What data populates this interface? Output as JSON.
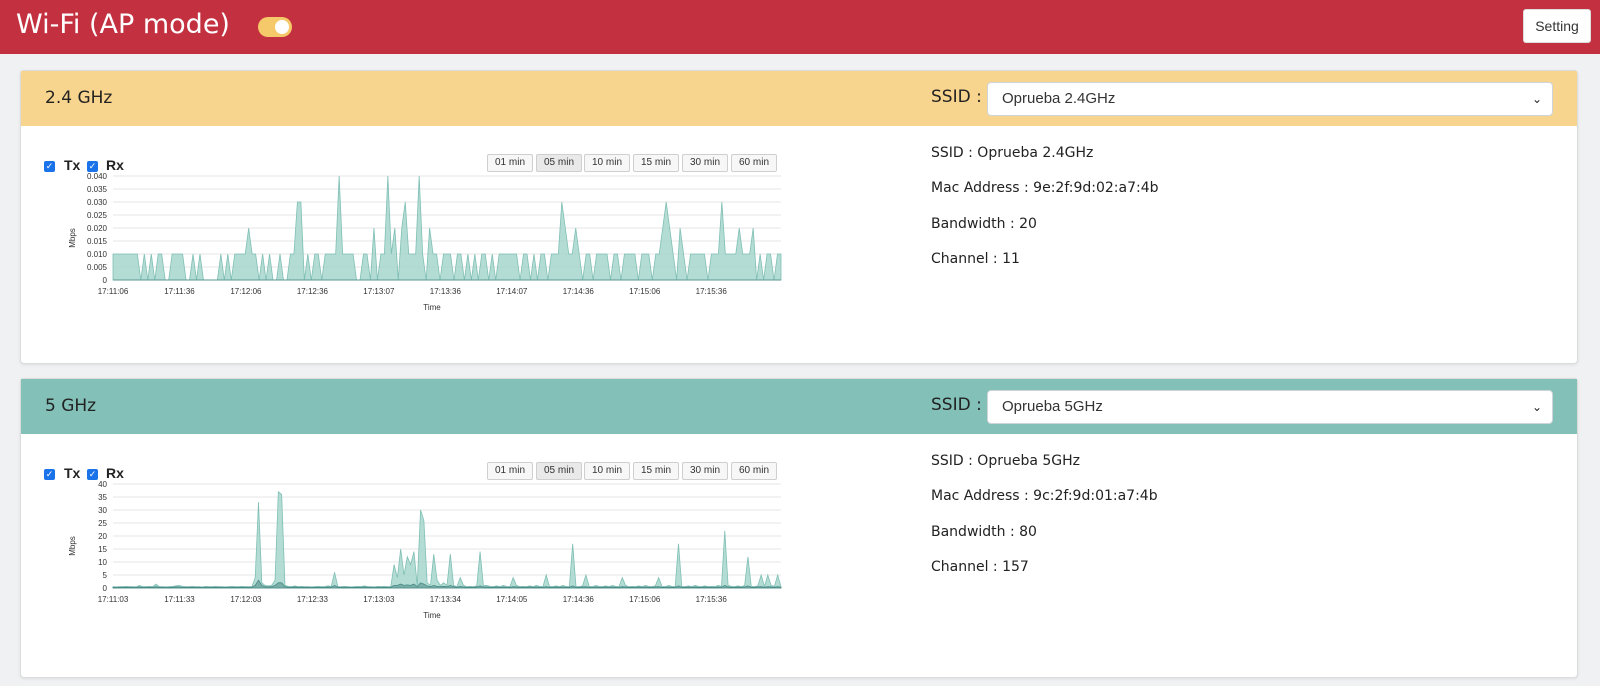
{
  "header": {
    "title": "Wi-Fi (AP mode)",
    "setting_label": "Setting",
    "toggle_on": true
  },
  "colors": {
    "header": "#c3303f",
    "band24": "#f8d58e",
    "band5": "#83c0b8",
    "fill": "#a6d6cc",
    "stroke": "#7fbfb4",
    "rx": "#4a8a85"
  },
  "bands": [
    {
      "title": "2.4 GHz",
      "ssid_label": "SSID :",
      "ssid_value": "Oprueba 2.4GHz",
      "legend": {
        "tx": "Tx",
        "rx": "Rx"
      },
      "ranges": [
        "01 min",
        "05 min",
        "10 min",
        "15 min",
        "30 min",
        "60 min"
      ],
      "active_range": "05 min",
      "info": {
        "ssid": "SSID : Oprueba 2.4GHz",
        "mac": "Mac Address : 9e:2f:9d:02:a7:4b",
        "bandwidth": "Bandwidth : 20",
        "channel": "Channel : 11"
      },
      "chart_data": {
        "type": "area",
        "title": "",
        "xlabel": "Time",
        "ylabel": "Mbps",
        "ylim": [
          0,
          0.04
        ],
        "yticks": [
          "0.040",
          "0.035",
          "0.030",
          "0.025",
          "0.020",
          "0.015",
          "0.010",
          "0.005",
          "0"
        ],
        "xticks": [
          "17:11:06",
          "17:11:36",
          "17:12:06",
          "17:12:36",
          "17:13:07",
          "17:13:36",
          "17:14:07",
          "17:14:36",
          "17:15:06",
          "17:15:36"
        ],
        "grid": true,
        "series": [
          {
            "values": [
              0.01,
              0.01,
              0.01,
              0.01,
              0.01,
              0.01,
              0.01,
              0.01,
              0,
              0.01,
              0,
              0.01,
              0,
              0.01,
              0.01,
              0,
              0,
              0.01,
              0.01,
              0.01,
              0.01,
              0,
              0,
              0.01,
              0,
              0.01,
              0,
              0,
              0,
              0,
              0,
              0.01,
              0,
              0.01,
              0,
              0.01,
              0.01,
              0.01,
              0.01,
              0.02,
              0.01,
              0.01,
              0,
              0.01,
              0,
              0.01,
              0,
              0,
              0.01,
              0,
              0,
              0.01,
              0.01,
              0.03,
              0.03,
              0,
              0.01,
              0,
              0.01,
              0.01,
              0,
              0.01,
              0.01,
              0.01,
              0.01,
              0.04,
              0.01,
              0.01,
              0.01,
              0.01,
              0,
              0,
              0.01,
              0.01,
              0,
              0.02,
              0,
              0.01,
              0.01,
              0.04,
              0.01,
              0.02,
              0,
              0.02,
              0.03,
              0.01,
              0.01,
              0.01,
              0.04,
              0.01,
              0,
              0.02,
              0.01,
              0.01,
              0,
              0.01,
              0.01,
              0.01,
              0,
              0.01,
              0.01,
              0,
              0.01,
              0,
              0.01,
              0,
              0.01,
              0.01,
              0,
              0.01,
              0,
              0.01,
              0.01,
              0.01,
              0.01,
              0.01,
              0.01,
              0,
              0.01,
              0.01,
              0,
              0.01,
              0,
              0.01,
              0.01,
              0,
              0.01,
              0.01,
              0.01,
              0.03,
              0.02,
              0.01,
              0.01,
              0.02,
              0.01,
              0,
              0.01,
              0.01,
              0,
              0.01,
              0.01,
              0.01,
              0.01,
              0,
              0.01,
              0.01,
              0,
              0.01,
              0.01,
              0.01,
              0.01,
              0,
              0.01,
              0.01,
              0.01,
              0,
              0.01,
              0.01,
              0.02,
              0.03,
              0.02,
              0.01,
              0,
              0.02,
              0.01,
              0,
              0.01,
              0.01,
              0.01,
              0.01,
              0.01,
              0,
              0.01,
              0.01,
              0.01,
              0.03,
              0.01,
              0.01,
              0.01,
              0.01,
              0.02,
              0.01,
              0.01,
              0.01,
              0.02,
              0,
              0.01,
              0,
              0.01,
              0.01,
              0,
              0.01,
              0.01
            ]
          },
          {
            "values": [
              0,
              0,
              0,
              0,
              0,
              0,
              0,
              0,
              0,
              0,
              0,
              0,
              0,
              0,
              0,
              0,
              0,
              0,
              0,
              0,
              0,
              0,
              0,
              0,
              0,
              0,
              0,
              0,
              0,
              0,
              0,
              0,
              0,
              0,
              0,
              0,
              0,
              0,
              0,
              0,
              0,
              0,
              0,
              0,
              0,
              0,
              0,
              0,
              0,
              0,
              0,
              0,
              0,
              0,
              0,
              0,
              0,
              0,
              0,
              0,
              0,
              0,
              0,
              0,
              0,
              0,
              0,
              0,
              0,
              0,
              0,
              0,
              0,
              0,
              0,
              0,
              0,
              0,
              0,
              0,
              0,
              0,
              0,
              0,
              0,
              0,
              0,
              0,
              0,
              0,
              0,
              0,
              0,
              0,
              0,
              0,
              0,
              0,
              0,
              0,
              0,
              0,
              0,
              0,
              0,
              0,
              0,
              0,
              0,
              0,
              0,
              0,
              0,
              0,
              0,
              0,
              0,
              0,
              0,
              0,
              0,
              0,
              0,
              0,
              0,
              0,
              0,
              0,
              0,
              0,
              0,
              0,
              0,
              0,
              0,
              0,
              0,
              0,
              0,
              0,
              0,
              0,
              0,
              0,
              0,
              0,
              0,
              0,
              0,
              0,
              0,
              0,
              0,
              0,
              0,
              0,
              0,
              0,
              0,
              0,
              0,
              0,
              0,
              0,
              0,
              0,
              0,
              0,
              0,
              0,
              0,
              0,
              0,
              0,
              0,
              0,
              0,
              0,
              0,
              0,
              0,
              0,
              0,
              0,
              0,
              0,
              0,
              0,
              0,
              0,
              0,
              0,
              0,
              0
            ]
          }
        ]
      }
    },
    {
      "title": "5 GHz",
      "ssid_label": "SSID :",
      "ssid_value": "Oprueba 5GHz",
      "legend": {
        "tx": "Tx",
        "rx": "Rx"
      },
      "ranges": [
        "01 min",
        "05 min",
        "10 min",
        "15 min",
        "30 min",
        "60 min"
      ],
      "active_range": "05 min",
      "info": {
        "ssid": "SSID : Oprueba 5GHz",
        "mac": "Mac Address : 9c:2f:9d:01:a7:4b",
        "bandwidth": "Bandwidth : 80",
        "channel": "Channel : 157"
      },
      "chart_data": {
        "type": "area",
        "title": "",
        "xlabel": "Time",
        "ylabel": "Mbps",
        "ylim": [
          0,
          40
        ],
        "yticks": [
          "40",
          "35",
          "30",
          "25",
          "20",
          "15",
          "10",
          "5",
          "0"
        ],
        "xticks": [
          "17:11:03",
          "17:11:33",
          "17:12:03",
          "17:12:33",
          "17:13:03",
          "17:13:34",
          "17:14:05",
          "17:14:36",
          "17:15:06",
          "17:15:36"
        ],
        "grid": true,
        "series": [
          {
            "values": [
              0.5,
              0.4,
              0.5,
              0.5,
              0.6,
              0.5,
              0.5,
              0.4,
              1,
              0.5,
              0.5,
              0.6,
              0.5,
              1.5,
              0.5,
              0.5,
              0.4,
              0.5,
              0.6,
              0.8,
              1,
              0.6,
              0.5,
              0.5,
              0.6,
              0.5,
              0.5,
              0.4,
              0.6,
              0.5,
              0.5,
              0.6,
              0.5,
              0.5,
              0.4,
              0.5,
              0.6,
              0.5,
              0.5,
              0.6,
              0.5,
              0.5,
              0.5,
              4,
              33,
              2,
              1,
              0.8,
              1,
              3,
              37,
              36,
              1,
              0.6,
              0.5,
              0.8,
              0.5,
              0.6,
              0.5,
              0.5,
              0.4,
              0.5,
              0.6,
              0.5,
              0.5,
              0.8,
              0.6,
              6,
              0.5,
              0.5,
              0.6,
              0.5,
              0.4,
              0.5,
              0.6,
              0.5,
              0.8,
              0.5,
              0.5,
              0.4,
              0.6,
              0.5,
              0.6,
              0.5,
              0.5,
              9,
              4,
              15,
              5,
              12,
              9,
              14,
              1,
              30,
              26,
              2,
              1,
              13,
              3,
              1,
              2,
              1,
              13,
              1,
              0.5,
              4,
              1,
              0.5,
              0.6,
              0.5,
              0.8,
              14,
              1,
              1,
              0.6,
              0.5,
              0.8,
              0.5,
              1,
              0.6,
              0.5,
              4,
              1,
              0.5,
              0.6,
              0.5,
              0.8,
              0.5,
              1,
              0.6,
              0.5,
              5,
              0.6,
              0.5,
              0.8,
              0.5,
              1,
              0.6,
              0.5,
              17,
              0.6,
              0.5,
              0.8,
              5,
              0.6,
              0.5,
              1,
              0.6,
              0.5,
              0.8,
              0.5,
              1,
              0.6,
              0.5,
              4,
              1,
              0.5,
              0.6,
              0.5,
              0.8,
              0.5,
              1,
              0.6,
              0.5,
              0.8,
              4,
              0.6,
              0.5,
              1,
              0.6,
              0.5,
              17,
              0.6,
              0.5,
              0.8,
              0.5,
              1,
              0.6,
              0.5,
              0.8,
              0.5,
              0.6,
              0.5,
              1,
              0.6,
              22,
              1,
              0.6,
              0.5,
              0.8,
              0.5,
              1,
              12,
              0.6,
              0.5,
              0.8,
              5,
              0.6,
              5,
              1,
              0.6,
              5,
              0.5
            ]
          },
          {
            "values": [
              0.3,
              0.3,
              0.3,
              0.3,
              0.3,
              0.3,
              0.3,
              0.3,
              0.4,
              0.3,
              0.3,
              0.3,
              0.3,
              0.5,
              0.3,
              0.3,
              0.3,
              0.3,
              0.3,
              0.4,
              0.4,
              0.3,
              0.3,
              0.3,
              0.3,
              0.3,
              0.3,
              0.3,
              0.3,
              0.3,
              0.3,
              0.3,
              0.3,
              0.3,
              0.3,
              0.3,
              0.3,
              0.3,
              0.3,
              0.3,
              0.3,
              0.3,
              0.3,
              1,
              3,
              1,
              0.5,
              0.4,
              0.5,
              1,
              2,
              2,
              0.5,
              0.3,
              0.3,
              0.4,
              0.3,
              0.3,
              0.3,
              0.3,
              0.3,
              0.3,
              0.3,
              0.3,
              0.3,
              0.4,
              0.3,
              1,
              0.3,
              0.3,
              0.3,
              0.3,
              0.3,
              0.3,
              0.3,
              0.3,
              0.4,
              0.3,
              0.3,
              0.3,
              0.3,
              0.3,
              0.3,
              0.3,
              0.3,
              1,
              1,
              1.5,
              1,
              1.2,
              1,
              1.5,
              0.5,
              2,
              1.5,
              0.8,
              0.5,
              1,
              0.6,
              0.5,
              0.6,
              0.5,
              1,
              0.5,
              0.3,
              0.6,
              0.4,
              0.3,
              0.3,
              0.3,
              0.4,
              0.8,
              0.4,
              0.4,
              0.3,
              0.3,
              0.4,
              0.3,
              0.4,
              0.3,
              0.3,
              0.5,
              0.4,
              0.3,
              0.3,
              0.3,
              0.4,
              0.3,
              0.4,
              0.3,
              0.3,
              0.5,
              0.3,
              0.3,
              0.4,
              0.3,
              0.4,
              0.3,
              0.3,
              0.8,
              0.3,
              0.3,
              0.4,
              0.5,
              0.3,
              0.3,
              0.4,
              0.3,
              0.3,
              0.4,
              0.3,
              0.4,
              0.3,
              0.3,
              0.5,
              0.4,
              0.3,
              0.3,
              0.3,
              0.4,
              0.3,
              0.4,
              0.3,
              0.3,
              0.4,
              0.5,
              0.3,
              0.3,
              0.4,
              0.3,
              0.3,
              0.8,
              0.3,
              0.3,
              0.4,
              0.3,
              0.4,
              0.3,
              0.3,
              0.4,
              0.3,
              0.3,
              0.3,
              0.4,
              0.3,
              1,
              0.4,
              0.3,
              0.3,
              0.4,
              0.3,
              0.4,
              0.8,
              0.3,
              0.3,
              0.4,
              0.5,
              0.3,
              0.5,
              0.4,
              0.3,
              0.5,
              0.3
            ]
          }
        ]
      }
    }
  ]
}
